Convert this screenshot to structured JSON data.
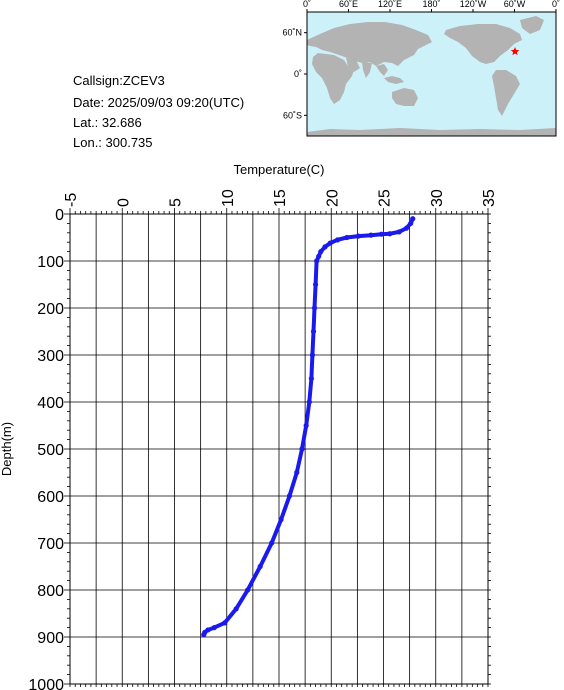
{
  "info": {
    "callsign": "Callsign:ZCEV3",
    "date": "Date:  2025/09/03 09:20(UTC)",
    "lat": "Lat.:  32.686",
    "lon": "Lon.:  300.735"
  },
  "map": {
    "lon_labels": [
      "0˚",
      "60˚E",
      "120˚E",
      "180˚",
      "120˚W",
      "60˚W",
      "0˚"
    ],
    "lat_labels": [
      "60˚N",
      "0˚",
      "60˚S"
    ],
    "ocean_color": "#cdf1f8",
    "land_color": "#b3b3b3",
    "marker_color": "#ff0000",
    "marker_icon": "star-icon",
    "station_lon": 300.735,
    "station_lat": 32.686
  },
  "chart_data": {
    "type": "line",
    "xlabel": "Temperature(C)",
    "ylabel": "Depth(m)",
    "xlim": [
      -5,
      35
    ],
    "ylim": [
      1000,
      0
    ],
    "x_ticks": [
      "-5",
      "0",
      "5",
      "10",
      "15",
      "20",
      "25",
      "30",
      "35"
    ],
    "y_ticks": [
      "0",
      "100",
      "200",
      "300",
      "400",
      "500",
      "600",
      "700",
      "800",
      "900",
      "1000"
    ],
    "x_axis_position": "top",
    "grid": true,
    "line_color": "#1a1aee",
    "series": [
      {
        "x": [
          27.8,
          27.6,
          27.2,
          26.5,
          25.6,
          24.8,
          23.8,
          22.6,
          21.5,
          20.6,
          19.9,
          19.4,
          19.0,
          18.8,
          18.6,
          18.5,
          18.4,
          18.3,
          18.2,
          18.1,
          17.9,
          17.6,
          17.2,
          16.7,
          16.0,
          15.2,
          14.3,
          13.2,
          12.0,
          10.9,
          9.8,
          8.8,
          8.2,
          7.9,
          7.8
        ],
        "y": [
          10,
          20,
          30,
          38,
          42,
          43,
          45,
          47,
          50,
          55,
          62,
          70,
          80,
          90,
          100,
          150,
          200,
          250,
          300,
          350,
          400,
          450,
          500,
          550,
          600,
          650,
          700,
          750,
          800,
          840,
          870,
          880,
          885,
          890,
          895
        ]
      }
    ]
  }
}
